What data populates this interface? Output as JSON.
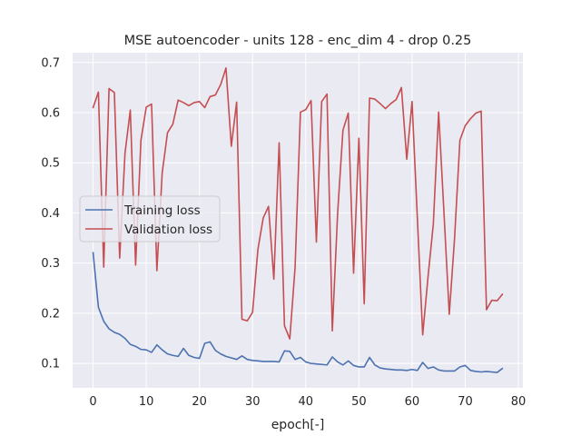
{
  "chart_data": {
    "type": "line",
    "title": "MSE autoencoder - units 128 - enc_dim 4 - drop 0.25",
    "xlabel": "epoch[-]",
    "ylabel": "",
    "xlim": [
      -3.85,
      80.85
    ],
    "ylim": [
      0.0513,
      0.7195
    ],
    "xticks": [
      0,
      10,
      20,
      30,
      40,
      50,
      60,
      70,
      80
    ],
    "yticks": [
      0.1,
      0.2,
      0.3,
      0.4,
      0.5,
      0.6,
      0.7
    ],
    "ytick_labels": [
      "0.1",
      "0.2",
      "0.3",
      "0.4",
      "0.5",
      "0.6",
      "0.7"
    ],
    "grid": true,
    "background": "#eaeaf2",
    "legend_position": "center-left",
    "series": [
      {
        "name": "Training loss",
        "color": "#4c72b0",
        "values": [
          0.321,
          0.212,
          0.184,
          0.169,
          0.162,
          0.158,
          0.15,
          0.138,
          0.134,
          0.128,
          0.127,
          0.122,
          0.137,
          0.127,
          0.119,
          0.116,
          0.114,
          0.13,
          0.116,
          0.112,
          0.11,
          0.14,
          0.143,
          0.126,
          0.119,
          0.114,
          0.111,
          0.108,
          0.115,
          0.108,
          0.106,
          0.105,
          0.104,
          0.104,
          0.104,
          0.103,
          0.125,
          0.124,
          0.108,
          0.112,
          0.103,
          0.1,
          0.099,
          0.098,
          0.097,
          0.113,
          0.103,
          0.097,
          0.105,
          0.096,
          0.093,
          0.093,
          0.112,
          0.097,
          0.091,
          0.089,
          0.088,
          0.087,
          0.087,
          0.086,
          0.088,
          0.086,
          0.102,
          0.09,
          0.093,
          0.087,
          0.085,
          0.085,
          0.085,
          0.093,
          0.096,
          0.086,
          0.084,
          0.083,
          0.084,
          0.083,
          0.082,
          0.09
        ]
      },
      {
        "name": "Validation loss",
        "color": "#c44e52",
        "values": [
          0.61,
          0.641,
          0.292,
          0.648,
          0.64,
          0.31,
          0.519,
          0.605,
          0.296,
          0.545,
          0.611,
          0.617,
          0.285,
          0.48,
          0.56,
          0.577,
          0.625,
          0.62,
          0.614,
          0.62,
          0.622,
          0.61,
          0.632,
          0.635,
          0.656,
          0.689,
          0.533,
          0.621,
          0.188,
          0.185,
          0.202,
          0.327,
          0.39,
          0.413,
          0.268,
          0.54,
          0.175,
          0.149,
          0.292,
          0.601,
          0.606,
          0.624,
          0.342,
          0.622,
          0.637,
          0.165,
          0.4,
          0.565,
          0.599,
          0.28,
          0.549,
          0.219,
          0.629,
          0.627,
          0.618,
          0.608,
          0.618,
          0.626,
          0.65,
          0.507,
          0.622,
          0.389,
          0.157,
          0.272,
          0.378,
          0.601,
          0.401,
          0.198,
          0.35,
          0.545,
          0.574,
          0.588,
          0.599,
          0.603,
          0.207,
          0.226,
          0.225,
          0.238
        ]
      }
    ]
  }
}
